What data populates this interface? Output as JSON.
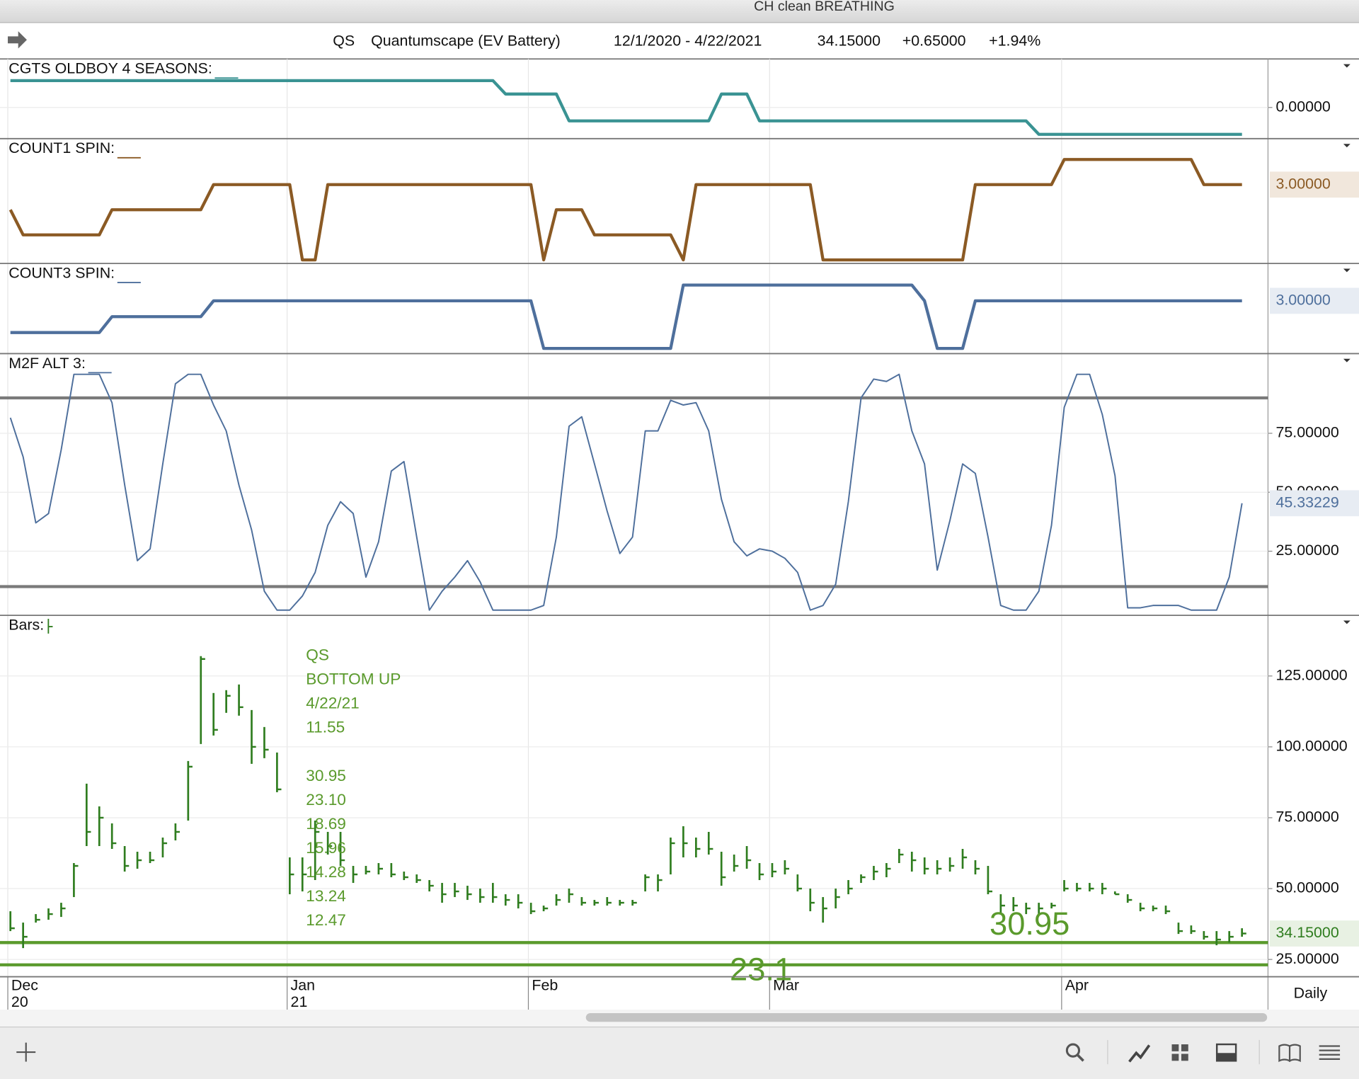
{
  "window": {
    "title": "CH clean BREATHING"
  },
  "header": {
    "symbol": "QS",
    "name": "Quantumscape (EV Battery)",
    "range": "12/1/2020 - 4/22/2021",
    "last": "34.15000",
    "change": "+0.65000",
    "change_pct": "+1.94%"
  },
  "x_axis": {
    "xlim": [
      -0.82,
      99.05
    ],
    "xticks": [
      {
        "value": 0,
        "label": "Dec"
      },
      {
        "value": 22,
        "label": "Jan"
      },
      {
        "value": 41,
        "label": "Feb"
      },
      {
        "value": 60,
        "label": "Mar"
      },
      {
        "value": 83,
        "label": "Apr"
      }
    ],
    "xtick_years": [
      {
        "value": 0,
        "label": "20"
      },
      {
        "value": 22,
        "label": "21"
      }
    ],
    "period": "Daily"
  },
  "chart_data": [
    {
      "type": "line",
      "title": "CGTS OLDBOY 4 SEASONS:",
      "color": "#3a9393",
      "ylim": [
        -2.32,
        3.61
      ],
      "yticks": [
        {
          "value": 0,
          "label": "0.00000"
        }
      ],
      "x": [
        0,
        38,
        39,
        43,
        44,
        55,
        56,
        58,
        59,
        80,
        81,
        97
      ],
      "values": [
        2,
        2,
        1,
        1,
        -1,
        -1,
        1,
        1,
        -1,
        -1,
        -2,
        -2
      ]
    },
    {
      "type": "line",
      "title": "COUNT1 SPIN:",
      "color": "#8b5a24",
      "ylim": [
        -0.14,
        4.83
      ],
      "last_label": "3.00000",
      "label_bg": "#f1e7dc",
      "x": [
        0,
        1,
        7,
        8,
        15,
        16,
        22,
        23,
        24,
        25,
        41,
        42,
        43,
        45,
        46,
        52,
        53,
        54,
        63,
        64,
        75,
        76,
        82,
        83,
        93,
        94,
        97
      ],
      "values": [
        2,
        1,
        1,
        2,
        2,
        3,
        3,
        0,
        0,
        3,
        3,
        0,
        2,
        2,
        1,
        1,
        0,
        3,
        3,
        0,
        0,
        3,
        3,
        4,
        4,
        3,
        3
      ]
    },
    {
      "type": "line",
      "title": "COUNT3 SPIN:",
      "color": "#4e6f9c",
      "ylim": [
        -0.33,
        5.36
      ],
      "last_label": "3.00000",
      "label_bg": "#e7ecf3",
      "x": [
        0,
        7,
        8,
        15,
        16,
        41,
        42,
        52,
        53,
        71,
        72,
        73,
        75,
        76,
        97
      ],
      "values": [
        1,
        1,
        2,
        2,
        3,
        3,
        0,
        0,
        4,
        4,
        3,
        0,
        0,
        3,
        3
      ]
    },
    {
      "type": "line",
      "title": "M2F ALT 3:",
      "color": "#4e6f9c",
      "thin": true,
      "ylim": [
        -2.2,
        108.8
      ],
      "yticks": [
        {
          "value": 25,
          "label": "25.00000"
        },
        {
          "value": 50,
          "label": "50.00000"
        },
        {
          "value": 75,
          "label": "75.00000"
        }
      ],
      "hlines": [
        90,
        10
      ],
      "hline_color": "#7a7a7a",
      "last_label": "45.33229",
      "label_bg": "#e7ecf3",
      "values": [
        81.6,
        65,
        37,
        41,
        68,
        100,
        100,
        100,
        88,
        53,
        21,
        26,
        62,
        96,
        100,
        100,
        87,
        76,
        53,
        34,
        8,
        0,
        0,
        6,
        16,
        36,
        46,
        41,
        14,
        29,
        59,
        63,
        31,
        0,
        8,
        14,
        21,
        12,
        0,
        0,
        0,
        0,
        2,
        31,
        78,
        82,
        62,
        42,
        24,
        31,
        76,
        76,
        89,
        87,
        88,
        76,
        47,
        29,
        23,
        26,
        25,
        22,
        16,
        0,
        2,
        11,
        46,
        90,
        98,
        97,
        100,
        76,
        62,
        17,
        38,
        62,
        58,
        31,
        2,
        0,
        0,
        8,
        36,
        86,
        100,
        100,
        83,
        57,
        1,
        1,
        2,
        2,
        2,
        0,
        0,
        0,
        14,
        45.33229
      ]
    },
    {
      "type": "ohlc",
      "title": "Bars:",
      "color": "#2f7d1f",
      "ylim": [
        18.9,
        146.4
      ],
      "yticks": [
        {
          "value": 25,
          "label": "25.00000"
        },
        {
          "value": 50,
          "label": "50.00000"
        },
        {
          "value": 75,
          "label": "75.00000"
        },
        {
          "value": 100,
          "label": "100.00000"
        },
        {
          "value": 125,
          "label": "125.00000"
        }
      ],
      "last_label": "34.15000",
      "label_bg": "#e8f1e3",
      "hlines": [
        30.95,
        23.1
      ],
      "hline_color": "#5a9a2c",
      "annotation": [
        "QS",
        "BOTTOM UP",
        "4/22/21",
        "11.55",
        "30.95",
        "23.10",
        "18.69",
        "15.96",
        "14.28",
        "13.24",
        "12.47"
      ],
      "high": [
        42,
        38,
        41,
        43,
        45,
        59,
        87,
        79,
        73,
        65,
        63,
        63,
        68,
        73,
        95,
        132,
        119,
        120,
        122,
        113,
        107,
        98,
        61,
        61,
        74,
        70,
        70,
        58,
        58,
        59,
        59,
        56,
        55,
        53,
        52,
        52,
        51,
        50,
        52,
        48,
        48,
        45,
        44,
        48,
        50,
        47,
        46,
        47,
        46,
        46,
        55,
        55,
        68,
        72,
        68,
        70,
        63,
        62,
        65,
        59,
        59,
        60,
        55,
        50,
        47,
        50,
        53,
        55,
        58,
        59,
        64,
        63,
        61,
        60,
        61,
        64,
        60,
        58,
        48,
        47,
        45,
        45,
        45,
        53,
        52,
        52,
        52,
        49,
        48,
        45,
        44,
        44,
        38,
        37,
        35,
        35,
        35,
        36
      ],
      "low": [
        35,
        29,
        38,
        39,
        40,
        47,
        65,
        65,
        64,
        56,
        57,
        59,
        61,
        67,
        74,
        101,
        104,
        112,
        111,
        94,
        96,
        84,
        48,
        49,
        53,
        62,
        58,
        52,
        55,
        55,
        54,
        53,
        52,
        49,
        45,
        47,
        46,
        45,
        45,
        44,
        43,
        41,
        42,
        44,
        45,
        44,
        44,
        44,
        44,
        44,
        49,
        49,
        55,
        61,
        61,
        62,
        51,
        56,
        57,
        53,
        54,
        55,
        49,
        42,
        38,
        43,
        48,
        52,
        53,
        54,
        59,
        56,
        55,
        55,
        56,
        57,
        55,
        48,
        41,
        42,
        41,
        41,
        43,
        49,
        49,
        49,
        48,
        48,
        45,
        42,
        42,
        41,
        34,
        34,
        32,
        30,
        31,
        33
      ],
      "close": [
        36,
        33,
        39,
        41,
        43,
        58,
        70,
        75,
        66,
        58,
        60,
        60,
        66,
        70,
        93,
        131,
        106,
        118,
        114,
        100,
        99,
        85,
        55,
        55,
        70,
        65,
        60,
        55,
        56,
        57,
        55,
        54,
        53,
        51,
        48,
        49,
        48,
        47,
        47,
        46,
        45,
        42,
        43,
        46,
        48,
        45,
        45,
        45,
        45,
        45,
        54,
        53,
        66,
        66,
        64,
        64,
        54,
        58,
        60,
        55,
        56,
        57,
        50,
        45,
        43,
        47,
        50,
        54,
        56,
        57,
        62,
        60,
        57,
        57,
        58,
        61,
        57,
        49,
        44,
        44,
        43,
        43,
        44,
        50,
        50,
        50,
        50,
        48,
        46,
        43,
        43,
        42,
        35,
        35,
        33,
        32,
        33,
        34.15
      ]
    }
  ]
}
